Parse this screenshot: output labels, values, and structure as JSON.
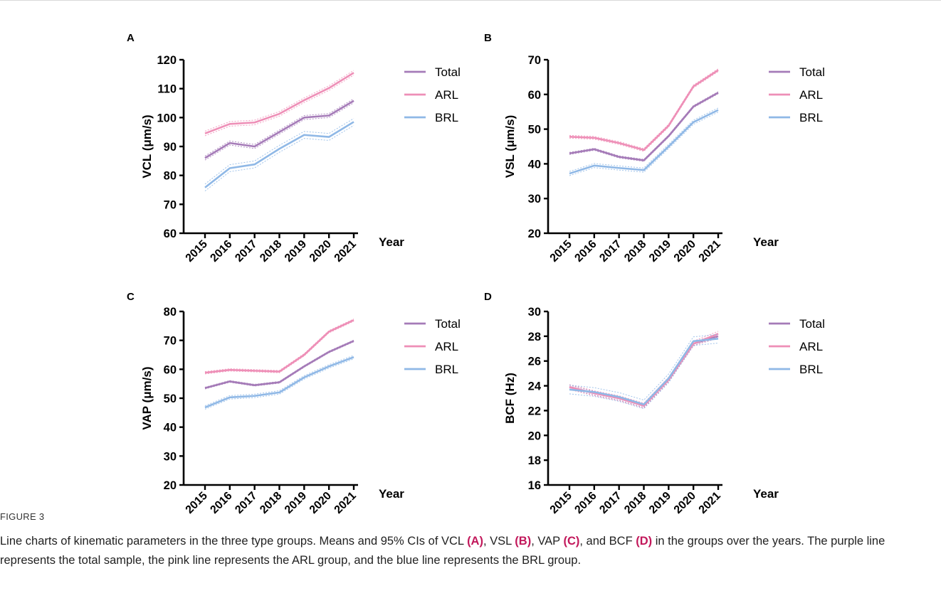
{
  "figure_label": "FIGURE 3",
  "caption": {
    "p1": "Line charts of kinematic parameters in the three type groups. Means and 95% CIs of VCL ",
    "l1": "(A)",
    "p2": ", VSL ",
    "l2": "(B)",
    "p3": ", VAP ",
    "l3": "(C)",
    "p4": ", and BCF ",
    "l4": "(D)",
    "p5": " in the groups over the years. The purple line represents the total sample, the pink line represents the ARL group, and the blue line represents the BRL group."
  },
  "colors": {
    "Total": "#a57bb8",
    "ARL": "#ee8fb7",
    "BRL": "#8fb8e6",
    "axis": "#000000"
  },
  "chart_data": [
    {
      "panel": "A",
      "type": "line",
      "ylabel": "VCL (μm/s)",
      "xlabel": "Year",
      "x": [
        "2015",
        "2016",
        "2017",
        "2018",
        "2019",
        "2020",
        "2021"
      ],
      "ylim": [
        60,
        120
      ],
      "yticks": [
        60,
        70,
        80,
        90,
        100,
        110,
        120
      ],
      "grid": false,
      "legend": "right",
      "series": [
        {
          "name": "Total",
          "values": [
            86,
            91.2,
            90,
            95,
            100,
            100.7,
            105.8
          ],
          "ci": 0.7
        },
        {
          "name": "ARL",
          "values": [
            94.5,
            97.8,
            98.3,
            101.3,
            106,
            110.2,
            115.5
          ],
          "ci": 0.8
        },
        {
          "name": "BRL",
          "values": [
            75.8,
            82.5,
            83.8,
            89.2,
            94,
            93.3,
            98.5
          ],
          "ci": 1.2
        }
      ]
    },
    {
      "panel": "B",
      "type": "line",
      "ylabel": "VSL (μm/s)",
      "xlabel": "Year",
      "x": [
        "2015",
        "2016",
        "2017",
        "2018",
        "2019",
        "2020",
        "2021"
      ],
      "ylim": [
        20,
        70
      ],
      "yticks": [
        20,
        30,
        40,
        50,
        60,
        70
      ],
      "grid": false,
      "legend": "right",
      "series": [
        {
          "name": "Total",
          "values": [
            43,
            44.2,
            42,
            41,
            48,
            56.5,
            60.5
          ],
          "ci": 0.3
        },
        {
          "name": "ARL",
          "values": [
            47.8,
            47.5,
            46,
            44,
            51,
            62.3,
            67
          ],
          "ci": 0.4
        },
        {
          "name": "BRL",
          "values": [
            37.2,
            39.5,
            38.8,
            38.2,
            45,
            52,
            55.5
          ],
          "ci": 0.6
        }
      ]
    },
    {
      "panel": "C",
      "type": "line",
      "ylabel": "VAP (μm/s)",
      "xlabel": "Year",
      "x": [
        "2015",
        "2016",
        "2017",
        "2018",
        "2019",
        "2020",
        "2021"
      ],
      "ylim": [
        20,
        80
      ],
      "yticks": [
        20,
        30,
        40,
        50,
        60,
        70,
        80
      ],
      "grid": false,
      "legend": "right",
      "series": [
        {
          "name": "Total",
          "values": [
            53.5,
            55.8,
            54.5,
            55.5,
            61,
            66,
            69.8
          ],
          "ci": 0.3
        },
        {
          "name": "ARL",
          "values": [
            58.8,
            59.8,
            59.5,
            59.2,
            65,
            73,
            77
          ],
          "ci": 0.4
        },
        {
          "name": "BRL",
          "values": [
            46.8,
            50.3,
            50.8,
            52,
            57.2,
            61,
            64.2
          ],
          "ci": 0.6
        }
      ]
    },
    {
      "panel": "D",
      "type": "line",
      "ylabel": "BCF (Hz)",
      "xlabel": "Year",
      "x": [
        "2015",
        "2016",
        "2017",
        "2018",
        "2019",
        "2020",
        "2021"
      ],
      "ylim": [
        16,
        30
      ],
      "yticks": [
        16,
        18,
        20,
        22,
        24,
        26,
        28,
        30
      ],
      "grid": false,
      "legend": "right",
      "series": [
        {
          "name": "Total",
          "values": [
            23.9,
            23.4,
            23,
            22.4,
            24.5,
            27.4,
            28
          ],
          "ci": 0.15
        },
        {
          "name": "ARL",
          "values": [
            23.9,
            23.4,
            23,
            22.4,
            24.5,
            27.4,
            28.2
          ],
          "ci": 0.2
        },
        {
          "name": "BRL",
          "values": [
            23.7,
            23.5,
            23.1,
            22.5,
            24.6,
            27.6,
            27.8
          ],
          "ci": 0.35
        }
      ]
    }
  ]
}
